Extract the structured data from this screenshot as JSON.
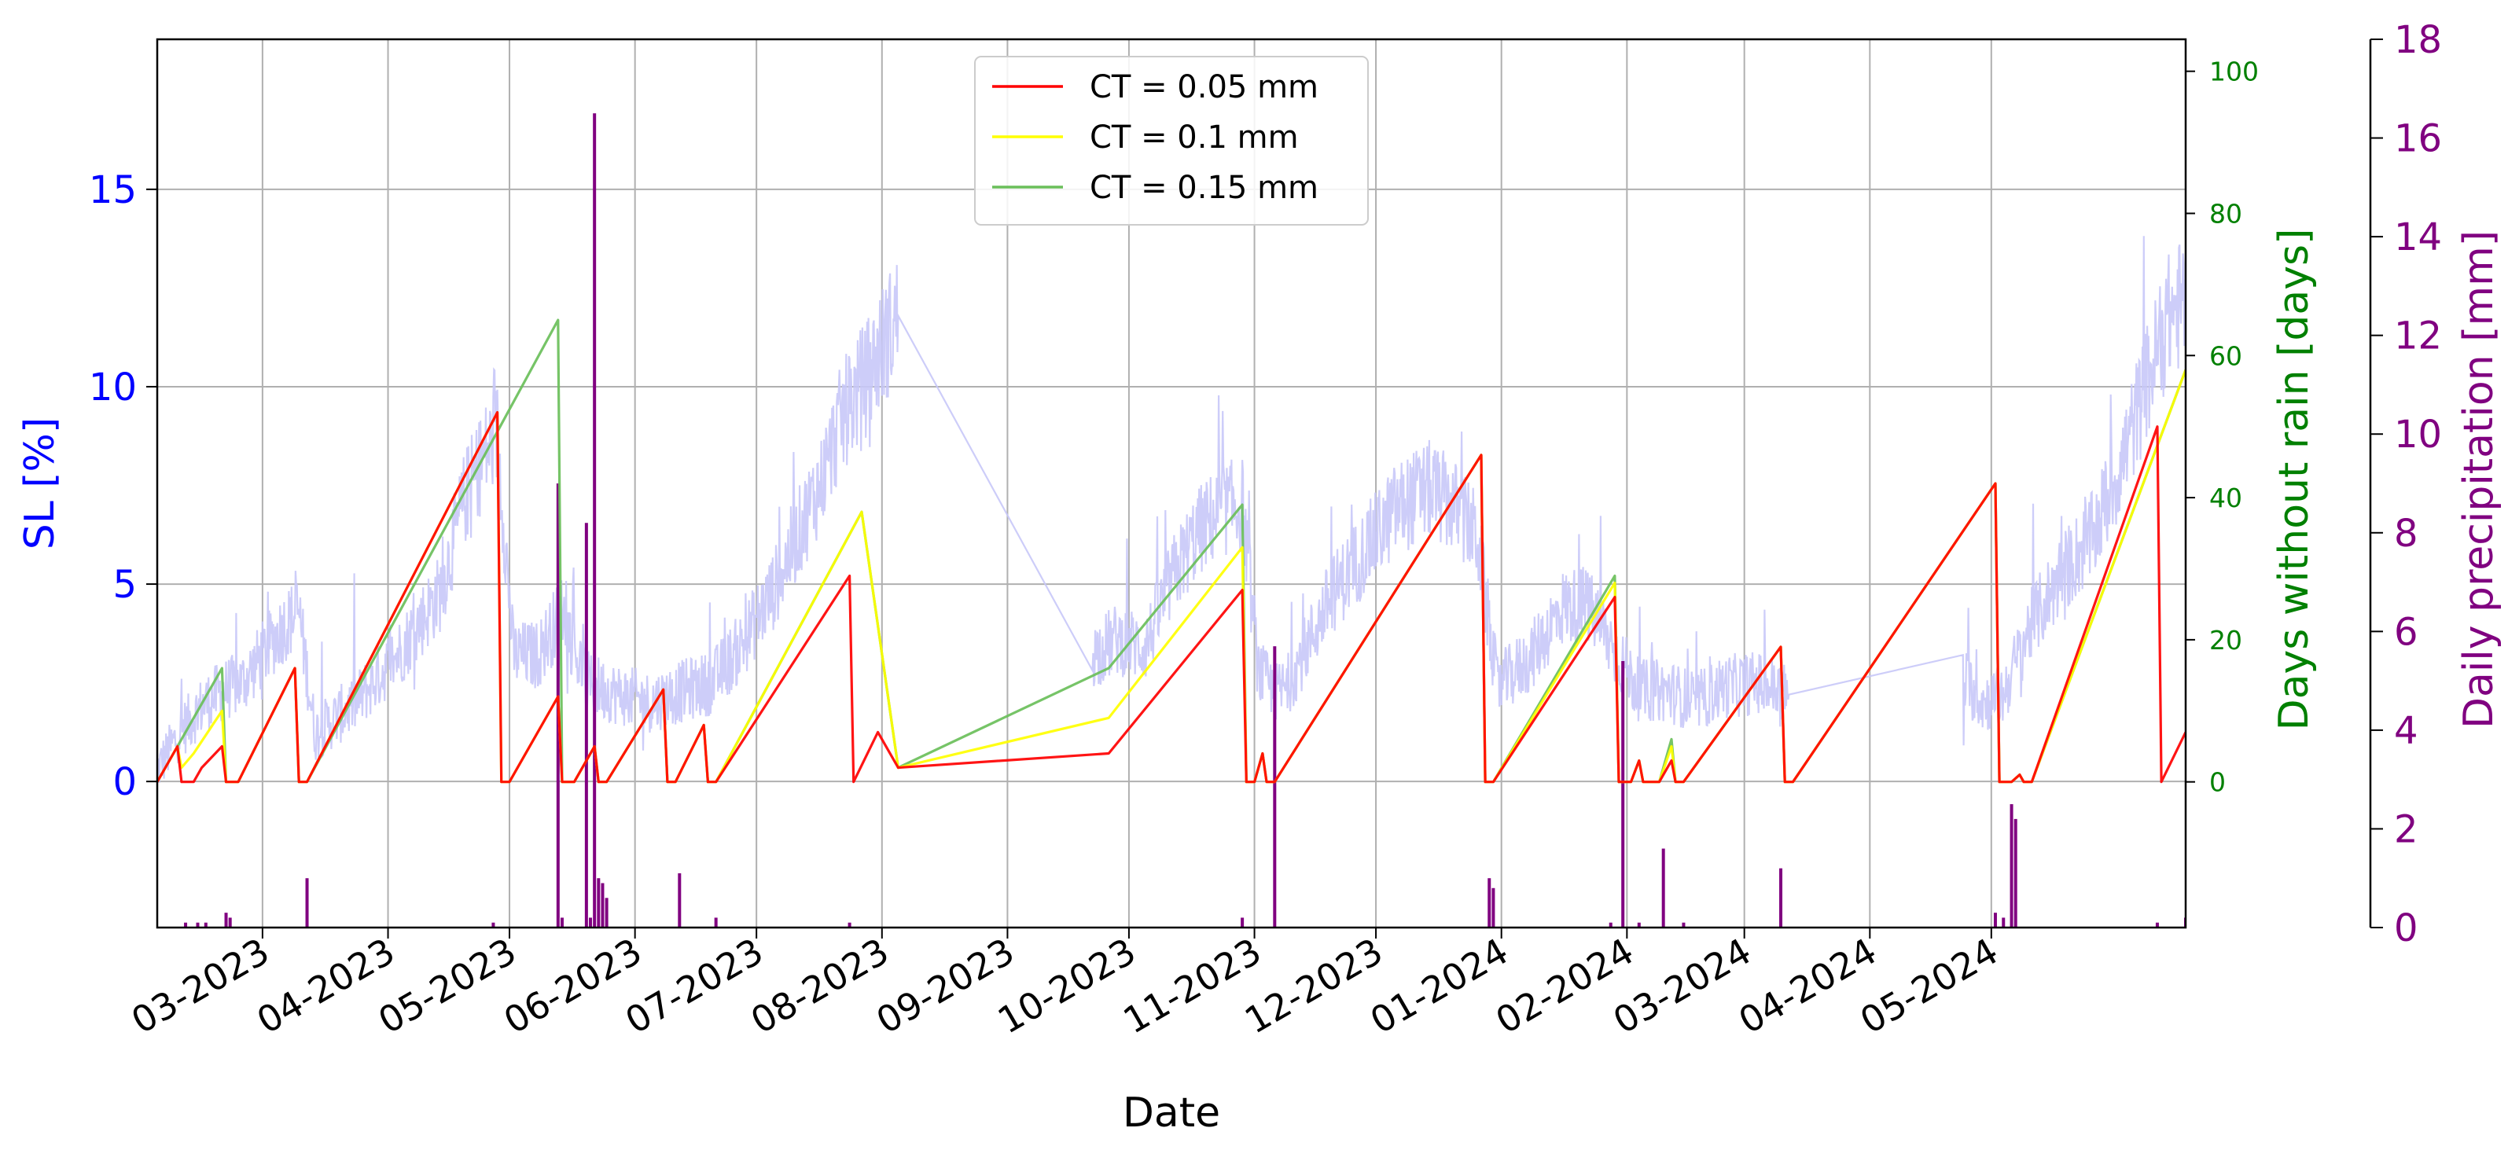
{
  "chart_data": {
    "type": "line",
    "xlabel": "Date",
    "x_tick_labels": [
      "03-2023",
      "04-2023",
      "05-2023",
      "06-2023",
      "07-2023",
      "08-2023",
      "09-2023",
      "10-2023",
      "11-2023",
      "12-2023",
      "01-2024",
      "02-2024",
      "03-2024",
      "04-2024",
      "05-2024"
    ],
    "x_tick_dates": [
      "2023-03-01",
      "2023-04-01",
      "2023-05-01",
      "2023-06-01",
      "2023-07-01",
      "2023-08-01",
      "2023-09-01",
      "2023-10-01",
      "2023-11-01",
      "2023-12-01",
      "2024-01-01",
      "2024-02-01",
      "2024-03-01",
      "2024-04-01",
      "2024-05-01"
    ],
    "xlim": [
      "2023-02-03",
      "2024-06-18"
    ],
    "grid": true,
    "legend_position": "top-center",
    "axes": {
      "left": {
        "label": "SL [%]",
        "color": "#0000ff",
        "ylim": [
          -3.7,
          18.8
        ],
        "ticks": [
          0,
          5,
          10,
          15
        ]
      },
      "right_inner": {
        "label": "Days without rain [days]",
        "color": "#008000",
        "ylim": [
          -20.5,
          104.5
        ],
        "ticks": [
          0,
          20,
          40,
          60,
          80,
          100
        ]
      },
      "right_outer": {
        "label": "Daily precipitation [mm]",
        "color": "#800080",
        "ylim": [
          0,
          18
        ],
        "ticks": [
          0,
          2,
          4,
          6,
          8,
          10,
          12,
          14,
          16,
          18
        ]
      }
    },
    "series": [
      {
        "name": "CT = 0.05 mm",
        "axis": "right_inner",
        "color": "#ff0000",
        "points": [
          [
            "2023-02-03",
            0
          ],
          [
            "2023-02-08",
            5
          ],
          [
            "2023-02-09",
            0
          ],
          [
            "2023-02-12",
            0
          ],
          [
            "2023-02-14",
            2
          ],
          [
            "2023-02-19",
            5
          ],
          [
            "2023-02-20",
            0
          ],
          [
            "2023-02-23",
            0
          ],
          [
            "2023-03-09",
            16
          ],
          [
            "2023-03-10",
            0
          ],
          [
            "2023-03-12",
            0
          ],
          [
            "2023-04-28",
            52
          ],
          [
            "2023-04-29",
            0
          ],
          [
            "2023-05-01",
            0
          ],
          [
            "2023-05-13",
            12
          ],
          [
            "2023-05-14",
            0
          ],
          [
            "2023-05-17",
            0
          ],
          [
            "2023-05-22",
            5
          ],
          [
            "2023-05-23",
            0
          ],
          [
            "2023-05-25",
            0
          ],
          [
            "2023-06-08",
            13
          ],
          [
            "2023-06-09",
            0
          ],
          [
            "2023-06-11",
            0
          ],
          [
            "2023-06-18",
            8
          ],
          [
            "2023-06-19",
            0
          ],
          [
            "2023-06-21",
            0
          ],
          [
            "2023-07-24",
            29
          ],
          [
            "2023-07-25",
            0
          ],
          [
            "2023-07-31",
            7
          ],
          [
            "2023-08-05",
            2
          ],
          [
            "2023-09-26",
            4
          ],
          [
            "2023-10-29",
            27
          ],
          [
            "2023-10-30",
            0
          ],
          [
            "2023-11-01",
            0
          ],
          [
            "2023-11-03",
            4
          ],
          [
            "2023-11-04",
            0
          ],
          [
            "2023-11-06",
            0
          ],
          [
            "2023-12-27",
            46
          ],
          [
            "2023-12-28",
            0
          ],
          [
            "2023-12-30",
            0
          ],
          [
            "2024-01-29",
            26
          ],
          [
            "2024-01-30",
            0
          ],
          [
            "2024-02-02",
            0
          ],
          [
            "2024-02-04",
            3
          ],
          [
            "2024-02-05",
            0
          ],
          [
            "2024-02-09",
            0
          ],
          [
            "2024-02-12",
            3
          ],
          [
            "2024-02-13",
            0
          ],
          [
            "2024-02-15",
            0
          ],
          [
            "2024-03-10",
            19
          ],
          [
            "2024-03-11",
            0
          ],
          [
            "2024-03-13",
            0
          ],
          [
            "2024-05-02",
            42
          ],
          [
            "2024-05-03",
            0
          ],
          [
            "2024-05-06",
            0
          ],
          [
            "2024-05-08",
            1
          ],
          [
            "2024-05-09",
            0
          ],
          [
            "2024-05-11",
            0
          ],
          [
            "2024-06-11",
            50
          ],
          [
            "2024-06-12",
            0
          ],
          [
            "2024-06-18",
            7
          ]
        ]
      },
      {
        "name": "CT = 0.1 mm",
        "axis": "right_inner",
        "color": "#ffff00",
        "points": [
          [
            "2023-02-03",
            0
          ],
          [
            "2023-02-08",
            5
          ],
          [
            "2023-02-09",
            2
          ],
          [
            "2023-02-12",
            4
          ],
          [
            "2023-02-19",
            10
          ],
          [
            "2023-02-20",
            0
          ],
          [
            "2023-02-23",
            0
          ],
          [
            "2023-03-09",
            16
          ],
          [
            "2023-03-10",
            0
          ],
          [
            "2023-03-12",
            0
          ],
          [
            "2023-04-28",
            52
          ],
          [
            "2023-04-29",
            0
          ],
          [
            "2023-05-01",
            0
          ],
          [
            "2023-05-13",
            12
          ],
          [
            "2023-05-14",
            0
          ],
          [
            "2023-05-17",
            0
          ],
          [
            "2023-05-22",
            5
          ],
          [
            "2023-05-23",
            0
          ],
          [
            "2023-05-25",
            0
          ],
          [
            "2023-06-08",
            13
          ],
          [
            "2023-06-09",
            0
          ],
          [
            "2023-06-11",
            0
          ],
          [
            "2023-06-18",
            8
          ],
          [
            "2023-06-19",
            0
          ],
          [
            "2023-06-21",
            0
          ],
          [
            "2023-07-27",
            38
          ],
          [
            "2023-08-05",
            2
          ],
          [
            "2023-09-26",
            9
          ],
          [
            "2023-10-29",
            33
          ],
          [
            "2023-10-30",
            0
          ],
          [
            "2023-11-01",
            0
          ],
          [
            "2023-11-03",
            4
          ],
          [
            "2023-11-04",
            0
          ],
          [
            "2023-11-06",
            0
          ],
          [
            "2023-12-27",
            46
          ],
          [
            "2023-12-28",
            0
          ],
          [
            "2023-12-30",
            0
          ],
          [
            "2024-01-29",
            28
          ],
          [
            "2024-01-30",
            0
          ],
          [
            "2024-02-02",
            0
          ],
          [
            "2024-02-04",
            3
          ],
          [
            "2024-02-05",
            0
          ],
          [
            "2024-02-09",
            0
          ],
          [
            "2024-02-12",
            5
          ],
          [
            "2024-02-13",
            0
          ],
          [
            "2024-02-15",
            0
          ],
          [
            "2024-03-10",
            19
          ],
          [
            "2024-03-11",
            0
          ],
          [
            "2024-03-13",
            0
          ],
          [
            "2024-05-02",
            42
          ],
          [
            "2024-05-03",
            0
          ],
          [
            "2024-05-06",
            0
          ],
          [
            "2024-05-08",
            1
          ],
          [
            "2024-05-09",
            0
          ],
          [
            "2024-05-11",
            0
          ],
          [
            "2024-06-18",
            58
          ]
        ]
      },
      {
        "name": "CT = 0.15 mm",
        "axis": "right_inner",
        "color": "#6abf5a",
        "points": [
          [
            "2023-02-03",
            0
          ],
          [
            "2023-02-19",
            16
          ],
          [
            "2023-02-20",
            0
          ],
          [
            "2023-02-23",
            0
          ],
          [
            "2023-03-09",
            16
          ],
          [
            "2023-03-10",
            0
          ],
          [
            "2023-03-12",
            0
          ],
          [
            "2023-05-13",
            65
          ],
          [
            "2023-05-14",
            0
          ],
          [
            "2023-05-17",
            0
          ],
          [
            "2023-05-22",
            5
          ],
          [
            "2023-05-23",
            0
          ],
          [
            "2023-05-25",
            0
          ],
          [
            "2023-06-08",
            13
          ],
          [
            "2023-06-09",
            0
          ],
          [
            "2023-06-11",
            0
          ],
          [
            "2023-06-18",
            8
          ],
          [
            "2023-06-19",
            0
          ],
          [
            "2023-06-21",
            0
          ],
          [
            "2023-07-27",
            38
          ],
          [
            "2023-08-05",
            2
          ],
          [
            "2023-09-26",
            16
          ],
          [
            "2023-10-29",
            39
          ],
          [
            "2023-10-30",
            0
          ],
          [
            "2023-11-01",
            0
          ],
          [
            "2023-11-03",
            4
          ],
          [
            "2023-11-04",
            0
          ],
          [
            "2023-11-06",
            0
          ],
          [
            "2023-12-27",
            46
          ],
          [
            "2023-12-28",
            0
          ],
          [
            "2023-12-30",
            0
          ],
          [
            "2024-01-29",
            29
          ],
          [
            "2024-01-30",
            0
          ],
          [
            "2024-02-02",
            0
          ],
          [
            "2024-02-04",
            3
          ],
          [
            "2024-02-05",
            0
          ],
          [
            "2024-02-09",
            0
          ],
          [
            "2024-02-12",
            6
          ],
          [
            "2024-02-13",
            0
          ],
          [
            "2024-02-15",
            0
          ],
          [
            "2024-03-10",
            19
          ],
          [
            "2024-03-11",
            0
          ],
          [
            "2024-03-13",
            0
          ],
          [
            "2024-05-02",
            42
          ],
          [
            "2024-05-03",
            0
          ],
          [
            "2024-05-06",
            0
          ],
          [
            "2024-05-08",
            1
          ],
          [
            "2024-05-09",
            0
          ],
          [
            "2024-05-11",
            0
          ],
          [
            "2024-06-18",
            58
          ]
        ]
      },
      {
        "axis": "left",
        "color": "#c8c8f8",
        "style": "dense noisy line",
        "points": [
          [
            "2023-02-03",
            0.3
          ],
          [
            "2023-02-09",
            1.3
          ],
          [
            "2023-02-14",
            1.9
          ],
          [
            "2023-02-19",
            2.3
          ],
          [
            "2023-02-24",
            2.5
          ],
          [
            "2023-03-01",
            3.2
          ],
          [
            "2023-03-06",
            3.9
          ],
          [
            "2023-03-10",
            4.3
          ],
          [
            "2023-03-14",
            1.2
          ],
          [
            "2023-03-24",
            2.0
          ],
          [
            "2023-04-04",
            3.3
          ],
          [
            "2023-04-14",
            4.8
          ],
          [
            "2023-04-20",
            7.2
          ],
          [
            "2023-04-25",
            8.3
          ],
          [
            "2023-04-28",
            8.8
          ],
          [
            "2023-05-02",
            3.2
          ],
          [
            "2023-05-08",
            3.2
          ],
          [
            "2023-05-14",
            4.3
          ],
          [
            "2023-05-20",
            2.5
          ],
          [
            "2023-05-28",
            2.2
          ],
          [
            "2023-06-05",
            2.0
          ],
          [
            "2023-06-13",
            2.3
          ],
          [
            "2023-06-20",
            2.5
          ],
          [
            "2023-06-27",
            3.4
          ],
          [
            "2023-07-05",
            4.8
          ],
          [
            "2023-07-11",
            6.2
          ],
          [
            "2023-07-17",
            7.6
          ],
          [
            "2023-07-22",
            9.2
          ],
          [
            "2023-07-28",
            10.2
          ],
          [
            "2023-08-05",
            11.8
          ],
          [
            "2023-09-22",
            3.2
          ],
          [
            "2023-09-28",
            3.6
          ],
          [
            "2023-10-05",
            3.4
          ],
          [
            "2023-10-12",
            5.2
          ],
          [
            "2023-10-18",
            6.3
          ],
          [
            "2023-10-24",
            6.9
          ],
          [
            "2023-10-29",
            7.0
          ],
          [
            "2023-11-02",
            2.8
          ],
          [
            "2023-11-06",
            2.2
          ],
          [
            "2023-11-09",
            2.4
          ],
          [
            "2023-11-20",
            4.7
          ],
          [
            "2023-11-28",
            5.8
          ],
          [
            "2023-12-06",
            6.9
          ],
          [
            "2023-12-14",
            7.4
          ],
          [
            "2023-12-20",
            7.0
          ],
          [
            "2023-12-26",
            6.2
          ],
          [
            "2023-12-31",
            2.4
          ],
          [
            "2024-01-08",
            3.1
          ],
          [
            "2024-01-16",
            4.4
          ],
          [
            "2024-01-22",
            4.5
          ],
          [
            "2024-01-28",
            3.5
          ],
          [
            "2024-02-04",
            2.3
          ],
          [
            "2024-02-11",
            2.3
          ],
          [
            "2024-02-18",
            2.0
          ],
          [
            "2024-02-25",
            2.4
          ],
          [
            "2024-03-04",
            2.5
          ],
          [
            "2024-03-12",
            2.2
          ],
          [
            "2024-04-24",
            2.6
          ],
          [
            "2024-04-29",
            2.0
          ],
          [
            "2024-05-04",
            2.2
          ],
          [
            "2024-05-10",
            3.8
          ],
          [
            "2024-05-18",
            5.2
          ],
          [
            "2024-05-26",
            6.2
          ],
          [
            "2024-06-02",
            8.0
          ],
          [
            "2024-06-09",
            10.3
          ],
          [
            "2024-06-14",
            11.8
          ],
          [
            "2024-06-18",
            12.2
          ]
        ]
      },
      {
        "axis": "right_outer",
        "color": "#800080",
        "style": "bars",
        "points": [
          [
            "2023-02-10",
            0.1
          ],
          [
            "2023-02-13",
            0.1
          ],
          [
            "2023-02-15",
            0.1
          ],
          [
            "2023-02-20",
            0.3
          ],
          [
            "2023-02-21",
            0.2
          ],
          [
            "2023-03-12",
            1.0
          ],
          [
            "2023-04-27",
            0.1
          ],
          [
            "2023-05-13",
            9.0
          ],
          [
            "2023-05-14",
            0.2
          ],
          [
            "2023-05-20",
            8.2
          ],
          [
            "2023-05-21",
            0.2
          ],
          [
            "2023-05-22",
            16.5
          ],
          [
            "2023-05-23",
            1.0
          ],
          [
            "2023-05-24",
            0.9
          ],
          [
            "2023-05-25",
            0.6
          ],
          [
            "2023-06-12",
            1.1
          ],
          [
            "2023-06-21",
            0.2
          ],
          [
            "2023-07-24",
            0.1
          ],
          [
            "2023-10-29",
            0.2
          ],
          [
            "2023-11-06",
            5.7
          ],
          [
            "2023-12-29",
            1.0
          ],
          [
            "2023-12-30",
            0.8
          ],
          [
            "2024-01-28",
            0.1
          ],
          [
            "2024-01-31",
            5.4
          ],
          [
            "2024-02-04",
            0.1
          ],
          [
            "2024-02-15",
            0.1
          ],
          [
            "2024-02-10",
            1.6
          ],
          [
            "2024-03-10",
            1.2
          ],
          [
            "2024-05-02",
            0.3
          ],
          [
            "2024-05-04",
            0.2
          ],
          [
            "2024-05-06",
            2.5
          ],
          [
            "2024-05-07",
            2.2
          ],
          [
            "2024-06-11",
            0.1
          ],
          [
            "2024-06-18",
            0.2
          ]
        ]
      }
    ]
  }
}
